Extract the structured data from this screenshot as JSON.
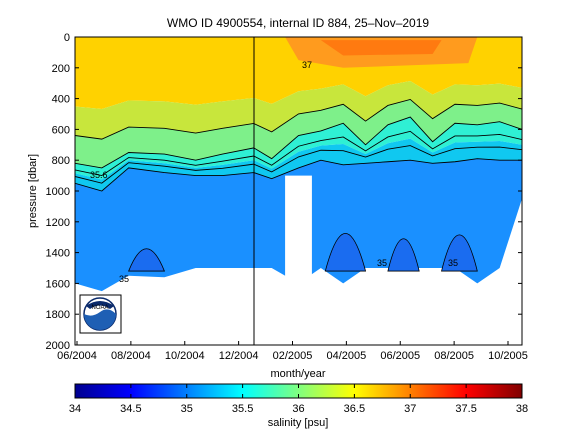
{
  "chart_data": {
    "type": "heatmap",
    "title": "WMO ID 4900554, internal ID 884, 25–Nov–2019",
    "xlabel": "month/year",
    "ylabel": "pressure [dbar]",
    "x_ticks": [
      "06/2004",
      "08/2004",
      "10/2004",
      "12/2004",
      "02/2005",
      "04/2005",
      "06/2005",
      "08/2005",
      "10/2005"
    ],
    "y_ticks": [
      0,
      200,
      400,
      600,
      800,
      1000,
      1200,
      1400,
      1600,
      1800,
      2000
    ],
    "ylim": [
      2000,
      0
    ],
    "y_reversed": true,
    "colorbar": {
      "label": "salinity [psu]",
      "range": [
        34,
        38
      ],
      "ticks": [
        "34",
        "34.5",
        "35",
        "35.5",
        "36",
        "36.5",
        "37",
        "37.5",
        "38"
      ],
      "colormap": "jet"
    },
    "contour_labels": [
      "35.6",
      "35",
      "35",
      "35",
      "37",
      "35"
    ],
    "section_x": [
      0,
      0.06,
      0.12,
      0.2,
      0.27,
      0.33,
      0.4,
      0.44,
      0.5,
      0.55,
      0.6,
      0.65,
      0.7,
      0.75,
      0.8,
      0.85,
      0.9,
      0.95,
      1.0
    ],
    "depth_35_5": [
      820,
      850,
      750,
      760,
      800,
      760,
      720,
      790,
      640,
      610,
      560,
      700,
      570,
      520,
      680,
      560,
      570,
      550,
      600
    ],
    "depth_35_2": [
      950,
      1000,
      850,
      880,
      900,
      900,
      880,
      920,
      850,
      800,
      830,
      820,
      810,
      800,
      820,
      810,
      790,
      800,
      800
    ],
    "bottom_depth": [
      1600,
      1650,
      1550,
      1560,
      1500,
      1500,
      1500,
      1500,
      1600,
      1500,
      1600,
      1500,
      1500,
      1500,
      1500,
      1500,
      1600,
      1500,
      1050
    ],
    "highlight_date": "12/2004"
  },
  "logo": {
    "text": "NOAA"
  }
}
